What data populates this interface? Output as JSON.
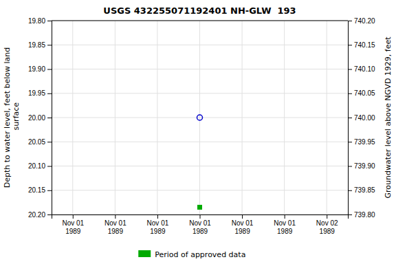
{
  "chart_data": {
    "type": "scatter",
    "title": "USGS 432255071192401 NH-GLW  193",
    "ylabel": "Depth to water level, feet below land\n surface",
    "y2label": "Groundwater level above NGVD 1929, feet",
    "categories": [
      "Nov 01\n1989",
      "Nov 01\n1989",
      "Nov 01\n1989",
      "Nov 01\n1989",
      "Nov 01\n1989",
      "Nov 01\n1989",
      "Nov 02\n1989"
    ],
    "series": [
      {
        "color": "#0000cc",
        "marker": "circle-open",
        "values": [
          null,
          null,
          null,
          20.0,
          null,
          null,
          null
        ]
      },
      {
        "name": "Period of approved data",
        "color": "#00aa00",
        "marker": "square",
        "values": [
          null,
          null,
          null,
          20.185,
          null,
          null,
          null
        ]
      }
    ],
    "ylim": [
      20.2,
      19.8
    ],
    "yticks": [
      {
        "value": 19.8,
        "label": "19.80"
      },
      {
        "value": 19.85,
        "label": "19.85"
      },
      {
        "value": 19.9,
        "label": "19.90"
      },
      {
        "value": 19.95,
        "label": "19.95"
      },
      {
        "value": 20.0,
        "label": "20.00"
      },
      {
        "value": 20.05,
        "label": "20.05"
      },
      {
        "value": 20.1,
        "label": "20.10"
      },
      {
        "value": 20.15,
        "label": "20.15"
      },
      {
        "value": 20.2,
        "label": "20.20"
      }
    ],
    "y2lim": [
      739.8,
      740.2
    ],
    "y2ticks": [
      {
        "value": 740.2,
        "label": "740.20"
      },
      {
        "value": 740.15,
        "label": "740.15"
      },
      {
        "value": 740.1,
        "label": "740.10"
      },
      {
        "value": 740.05,
        "label": "740.05"
      },
      {
        "value": 740.0,
        "label": "740.00"
      },
      {
        "value": 739.95,
        "label": "739.95"
      },
      {
        "value": 739.9,
        "label": "739.90"
      },
      {
        "value": 739.85,
        "label": "739.85"
      },
      {
        "value": 739.8,
        "label": "739.80"
      }
    ],
    "grid": true,
    "legend": "bottom"
  }
}
